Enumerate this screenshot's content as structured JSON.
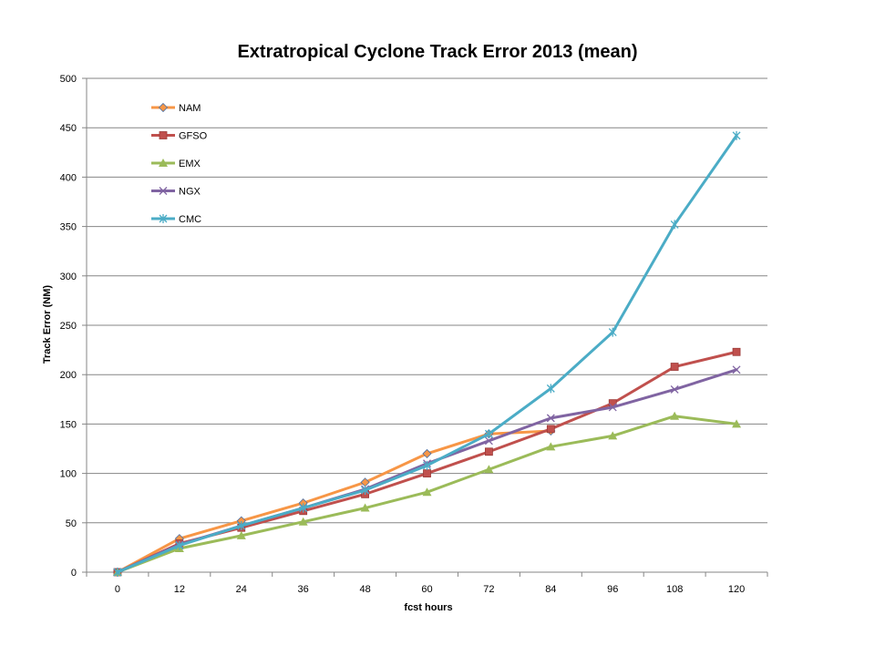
{
  "chart_data": {
    "type": "line",
    "title": "Extratropical Cyclone Track Error 2013 (mean)",
    "xlabel": "fcst hours",
    "ylabel": "Track Error (NM)",
    "categories": [
      "0",
      "12",
      "24",
      "36",
      "48",
      "60",
      "72",
      "84",
      "96",
      "108",
      "120"
    ],
    "ylim": [
      0,
      500
    ],
    "yticks": [
      0,
      50,
      100,
      150,
      200,
      250,
      300,
      350,
      400,
      450,
      500
    ],
    "grid": true,
    "legend_position": "top-left",
    "series": [
      {
        "name": "NAM",
        "color": "#f79646",
        "marker": "diamond",
        "values": [
          0,
          34,
          52,
          70,
          91,
          120,
          140,
          143,
          null,
          null,
          null
        ]
      },
      {
        "name": "GFSO",
        "color": "#c0504d",
        "marker": "square",
        "values": [
          0,
          29,
          45,
          62,
          79,
          100,
          122,
          145,
          171,
          208,
          223
        ]
      },
      {
        "name": "EMX",
        "color": "#9bbb59",
        "marker": "triangle",
        "values": [
          0,
          24,
          37,
          51,
          65,
          81,
          104,
          127,
          138,
          158,
          150
        ]
      },
      {
        "name": "NGX",
        "color": "#8064a2",
        "marker": "x",
        "values": [
          0,
          28,
          47,
          65,
          84,
          110,
          133,
          156,
          167,
          185,
          205
        ]
      },
      {
        "name": "CMC",
        "color": "#4bacc6",
        "marker": "star",
        "values": [
          0,
          27,
          47,
          65,
          83,
          108,
          140,
          186,
          243,
          352,
          442
        ]
      }
    ]
  }
}
